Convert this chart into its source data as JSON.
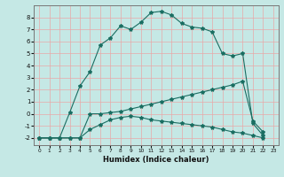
{
  "xlabel": "Humidex (Indice chaleur)",
  "xlim": [
    -0.5,
    23.5
  ],
  "ylim": [
    -2.6,
    9.0
  ],
  "yticks": [
    -2,
    -1,
    0,
    1,
    2,
    3,
    4,
    5,
    6,
    7,
    8
  ],
  "xticks": [
    0,
    1,
    2,
    3,
    4,
    5,
    6,
    7,
    8,
    9,
    10,
    11,
    12,
    13,
    14,
    15,
    16,
    17,
    18,
    19,
    20,
    21,
    22,
    23
  ],
  "bg_color": "#c5e8e5",
  "line_color": "#1a6e62",
  "grid_color": "#e8a8a8",
  "curve1_x": [
    0,
    1,
    2,
    3,
    4,
    5,
    6,
    7,
    8,
    9,
    10,
    11,
    12,
    13,
    14,
    15,
    16,
    17,
    18,
    19,
    20,
    21,
    22
  ],
  "curve1_y": [
    -2,
    -2,
    -2,
    -2,
    -2,
    -1.3,
    -0.9,
    -0.5,
    -0.3,
    -0.2,
    -0.3,
    -0.5,
    -0.6,
    -0.7,
    -0.8,
    -0.9,
    -1.0,
    -1.1,
    -1.3,
    -1.5,
    -1.6,
    -1.8,
    -2.0
  ],
  "curve2_x": [
    0,
    1,
    2,
    3,
    4,
    5,
    6,
    7,
    8,
    9,
    10,
    11,
    12,
    13,
    14,
    15,
    16,
    17,
    18,
    19,
    20,
    21,
    22
  ],
  "curve2_y": [
    -2,
    -2,
    -2,
    -2,
    -2,
    0,
    0.0,
    0.1,
    0.2,
    0.4,
    0.6,
    0.8,
    1.0,
    1.2,
    1.4,
    1.6,
    1.8,
    2.0,
    2.2,
    2.4,
    2.7,
    -0.6,
    -1.5
  ],
  "curve3_x": [
    0,
    1,
    2,
    3,
    4,
    5,
    6,
    7,
    8,
    9,
    10,
    11,
    12,
    13,
    14,
    15,
    16,
    17,
    18,
    19,
    20,
    21,
    22
  ],
  "curve3_y": [
    -2,
    -2,
    -2,
    0.1,
    2.3,
    3.5,
    5.7,
    6.3,
    7.3,
    7.0,
    7.6,
    8.4,
    8.5,
    8.2,
    7.5,
    7.2,
    7.1,
    6.8,
    5.0,
    4.8,
    5.0,
    -0.8,
    -1.8
  ]
}
